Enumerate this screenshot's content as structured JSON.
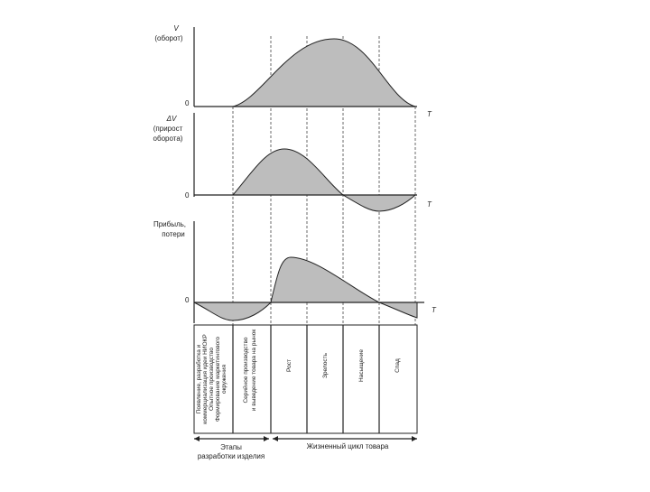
{
  "panels": [
    {
      "label": [
        "V",
        "(оборот)"
      ],
      "zero": "0",
      "t": "T"
    },
    {
      "label": [
        "ΔV",
        "(прирост",
        "оборота)"
      ],
      "zero": "0",
      "t": "T"
    },
    {
      "label": [
        "Прибыль,",
        "потери"
      ],
      "zero": "0",
      "t": "T"
    }
  ],
  "table": {
    "columns": [
      {
        "lines": [
          "Появление, разработка и",
          "коммерциализация идеи НИОКР",
          "Опытное производство",
          "Формирование маркетингового",
          "окружения"
        ]
      },
      {
        "lines": [
          "Серийное производство",
          "и выведение товара на рынок"
        ]
      },
      {
        "lines": [
          "Рост"
        ]
      },
      {
        "lines": [
          "Зрелость"
        ]
      },
      {
        "lines": [
          "Насыщение"
        ]
      },
      {
        "lines": [
          "Спад"
        ]
      }
    ]
  },
  "footer": {
    "left": [
      "Этапы",
      "разработки изделия"
    ],
    "right": "Жизненный цикл товара"
  }
}
